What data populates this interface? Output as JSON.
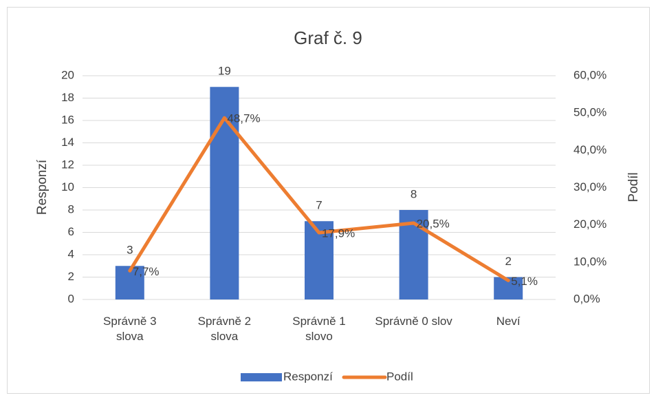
{
  "chart_data": {
    "type": "bar+line",
    "title": "Graf č. 9",
    "categories": [
      "Správně 3 slova",
      "Správně 2 slova",
      "Správně 1 slovo",
      "Správně 0 slov",
      "Neví"
    ],
    "series": [
      {
        "name": "Responzí",
        "color": "#4472c4",
        "values": [
          3,
          19,
          7,
          8,
          2
        ]
      },
      {
        "name": "Podíl",
        "color": "#ed7d31",
        "axis": "y2",
        "values": [
          7.7,
          48.7,
          17.9,
          20.5,
          5.1
        ],
        "value_labels": [
          "7,7%",
          "48,7%",
          "17,9%",
          "20,5%",
          "5,1%"
        ]
      }
    ],
    "ylabel": "Responzí",
    "y2label": "Podíl",
    "ylim": [
      0,
      20
    ],
    "yticks": [
      0,
      2,
      4,
      6,
      8,
      10,
      12,
      14,
      16,
      18,
      20
    ],
    "y2lim": [
      0,
      60
    ],
    "y2ticks": [
      {
        "value": 0,
        "label": "0,0%"
      },
      {
        "value": 10,
        "label": "10,0%"
      },
      {
        "value": 20,
        "label": "20,0%"
      },
      {
        "value": 30,
        "label": "30,0%"
      },
      {
        "value": 40,
        "label": "40,0%"
      },
      {
        "value": 50,
        "label": "50,0%"
      },
      {
        "value": 60,
        "label": "60,0%"
      }
    ],
    "grid": true,
    "legend": "bottom"
  }
}
